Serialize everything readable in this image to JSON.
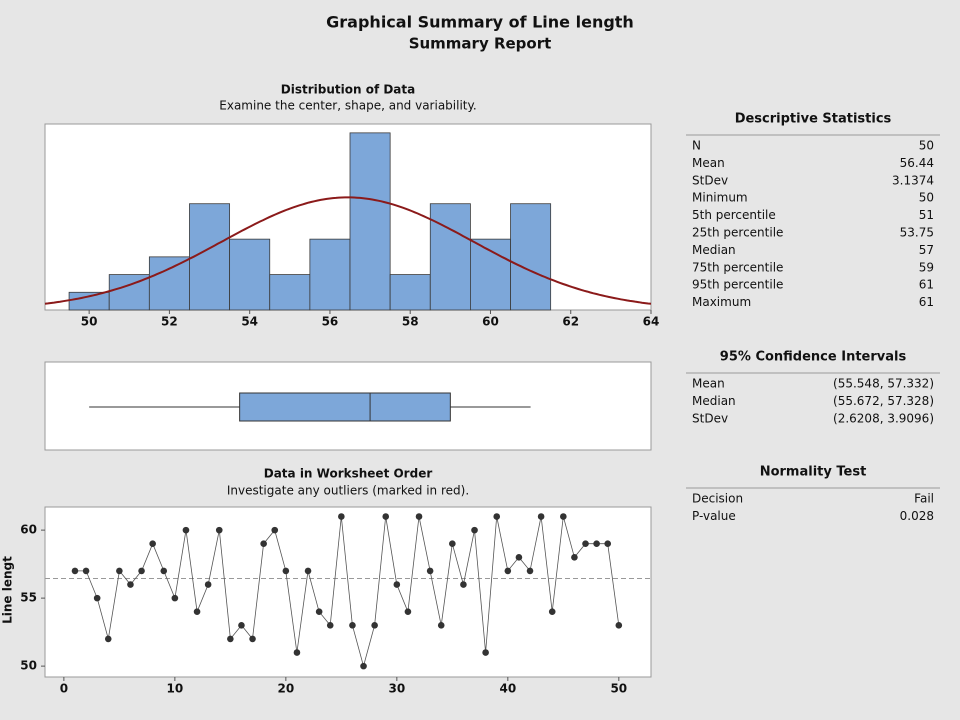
{
  "title": "Graphical Summary of Line length",
  "subtitle": "Summary Report",
  "chart_data": [
    {
      "type": "histogram",
      "title": "Distribution of Data",
      "subtitle": "Examine the center, shape, and variability.",
      "bins": [
        49.5,
        50.5,
        51.5,
        52.5,
        53.5,
        54.5,
        55.5,
        56.5,
        57.5,
        58.5,
        59.5,
        60.5,
        61.5
      ],
      "counts": [
        1,
        2,
        3,
        6,
        4,
        2,
        4,
        10,
        2,
        6,
        4,
        6
      ],
      "color": "#7da7d9",
      "curve_color": "#8b1a1a",
      "xlim": [
        48.9,
        64
      ],
      "ylim": [
        0,
        10.5
      ],
      "xticks": [
        50,
        52,
        54,
        56,
        58,
        60,
        62,
        64
      ]
    },
    {
      "type": "box",
      "color": "#7da7d9",
      "xlim": [
        48.9,
        64
      ]
    },
    {
      "type": "line",
      "title": "Data in Worksheet Order",
      "subtitle": "Investigate any outliers (marked in red).",
      "y_label": "Line lengt",
      "x": [
        1,
        2,
        3,
        4,
        5,
        6,
        7,
        8,
        9,
        10,
        11,
        12,
        13,
        14,
        15,
        16,
        17,
        18,
        19,
        20,
        21,
        22,
        23,
        24,
        25,
        26,
        27,
        28,
        29,
        30,
        31,
        32,
        33,
        34,
        35,
        36,
        37,
        38,
        39,
        40,
        41,
        42,
        43,
        44,
        45,
        46,
        47,
        48,
        49,
        50
      ],
      "values": [
        57,
        57,
        55,
        52,
        57,
        56,
        57,
        59,
        57,
        55,
        60,
        54,
        56,
        60,
        52,
        53,
        52,
        59,
        60,
        57,
        51,
        57,
        54,
        53,
        61,
        53,
        50,
        53,
        61,
        56,
        54,
        61,
        57,
        53,
        59,
        56,
        60,
        51,
        61,
        57,
        58,
        57,
        61,
        54,
        61,
        58,
        59,
        59,
        59,
        53
      ],
      "color": "#333333",
      "xlim": [
        -1.7,
        52.9
      ],
      "ylim": [
        49.2,
        61.7
      ],
      "xticks": [
        0,
        10,
        20,
        30,
        40,
        50
      ],
      "yticks": [
        50,
        55,
        60
      ]
    }
  ],
  "descriptive_statistics": {
    "title": "Descriptive Statistics",
    "rows": [
      [
        "N",
        50
      ],
      [
        "Mean",
        56.44
      ],
      [
        "StDev",
        3.1374
      ],
      [
        "Minimum",
        50
      ],
      [
        "5th percentile",
        51
      ],
      [
        "25th percentile",
        53.75
      ],
      [
        "Median",
        57
      ],
      [
        "75th percentile",
        59
      ],
      [
        "95th percentile",
        61
      ],
      [
        "Maximum",
        61
      ]
    ]
  },
  "confidence_intervals": {
    "title": "95% Confidence Intervals",
    "rows": [
      [
        "Mean",
        "(55.548, 57.332)"
      ],
      [
        "Median",
        "(55.672, 57.328)"
      ],
      [
        "StDev",
        "(2.6208, 3.9096)"
      ]
    ]
  },
  "normality_test": {
    "title": "Normality Test",
    "rows": [
      [
        "Decision",
        "Fail"
      ],
      [
        "P-value",
        0.028
      ]
    ]
  }
}
